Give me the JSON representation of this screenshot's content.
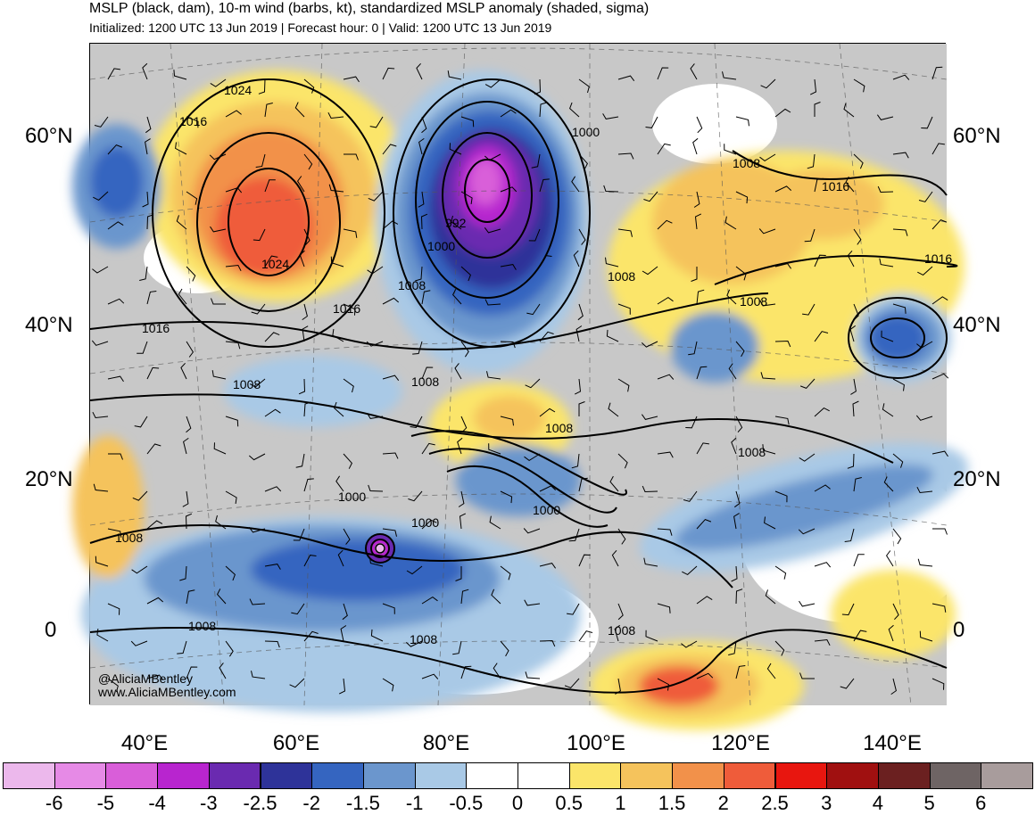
{
  "header": {
    "title": "MSLP (black, dam), 10-m wind (barbs, kt), standardized MSLP anomaly (shaded, sigma)",
    "subtitle": "Initialized: 1200 UTC 13 Jun 2019 | Forecast hour: 0 | Valid: 1200 UTC 13 Jun 2019"
  },
  "map": {
    "lat_labels": [
      "60°N",
      "40°N",
      "20°N",
      "0"
    ],
    "lon_labels": [
      "40°E",
      "60°E",
      "80°E",
      "100°E",
      "120°E",
      "140°E"
    ],
    "credits": [
      "@AliciaMBentley",
      "www.AliciaMBentley.com"
    ],
    "isobar_labels": [
      "1024",
      "1016",
      "1024",
      "1016",
      "1016",
      "1008",
      "1008",
      "1000",
      "992",
      "1000",
      "1008",
      "1008",
      "1008",
      "1008",
      "1000",
      "1000",
      "1008",
      "1008",
      "1008",
      "1008",
      "1008",
      "1016",
      "1016",
      "1000",
      "1008"
    ],
    "colors": {
      "land": "#c8c8c8",
      "isobar": "#000000",
      "frame": "#000000"
    },
    "features": {
      "high_ural": "High pressure over western Russia (1024 dam), positive anomaly",
      "low_siberia": "Low pressure over central Siberia (992), strongly negative anomaly",
      "cyclone_arabian_sea": "Compact tropical low in the Arabian Sea, anomaly below -5"
    }
  },
  "colorbar": {
    "colors": [
      "#ecb8ec",
      "#e68ae6",
      "#d95ed9",
      "#b825cf",
      "#6a2ab0",
      "#2e3399",
      "#3565c0",
      "#6b96cd",
      "#a9c9e6",
      "#ffffff",
      "#ffffff",
      "#fbe56a",
      "#f5c35c",
      "#f2914a",
      "#ef5c3a",
      "#e8160f",
      "#a01010",
      "#6b2020",
      "#6e6464",
      "#a89c9c"
    ],
    "labels": [
      "-6",
      "-5",
      "-4",
      "-3",
      "-2.5",
      "-2",
      "-1.5",
      "-1",
      "-0.5",
      "0",
      "0.5",
      "1",
      "1.5",
      "2",
      "2.5",
      "3",
      "4",
      "5",
      "6"
    ]
  }
}
